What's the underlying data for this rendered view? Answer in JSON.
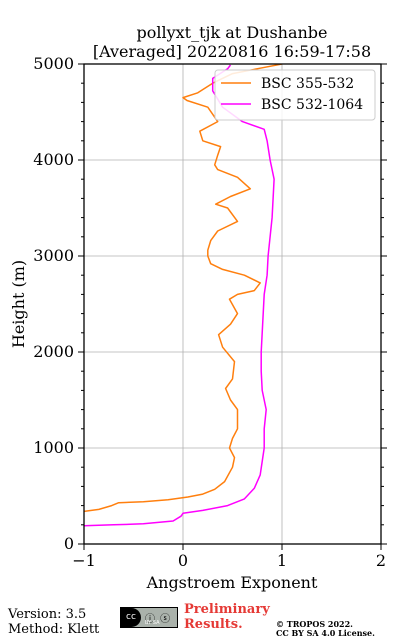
{
  "title_line1": "pollyxt_tjk at Dushanbe",
  "title_line2": "[Averaged] 20220816 16:59-17:58",
  "footer": {
    "version": "Version: 3.5",
    "method": "Method: Klett",
    "cc_label": "cc",
    "cc_icons": "ⓘ ⓢ",
    "cc_sub": "BY  SA",
    "prelim_line1": "Preliminary",
    "prelim_line2": "Results.",
    "copyright_line1": "© TROPOS 2022.",
    "copyright_line2": "CC BY SA 4.0 License."
  },
  "chart_data": {
    "type": "line",
    "xlabel": "Angstroem Exponent",
    "ylabel": "Height (m)",
    "xlim": [
      -1,
      2
    ],
    "ylim": [
      0,
      5000
    ],
    "xticks": [
      -1,
      0,
      1,
      2
    ],
    "yticks": [
      0,
      1000,
      2000,
      3000,
      4000,
      5000
    ],
    "grid": true,
    "legend_position": "top-right",
    "series": [
      {
        "name": "BSC 355-532",
        "color": "#ff7f0e",
        "points": [
          [
            -1.0,
            340
          ],
          [
            -0.85,
            360
          ],
          [
            -0.72,
            400
          ],
          [
            -0.65,
            430
          ],
          [
            -0.4,
            440
          ],
          [
            -0.15,
            460
          ],
          [
            0.05,
            490
          ],
          [
            0.2,
            520
          ],
          [
            0.32,
            570
          ],
          [
            0.42,
            650
          ],
          [
            0.5,
            800
          ],
          [
            0.52,
            900
          ],
          [
            0.47,
            1000
          ],
          [
            0.5,
            1100
          ],
          [
            0.55,
            1200
          ],
          [
            0.55,
            1400
          ],
          [
            0.48,
            1500
          ],
          [
            0.43,
            1620
          ],
          [
            0.5,
            1720
          ],
          [
            0.52,
            1900
          ],
          [
            0.4,
            2050
          ],
          [
            0.36,
            2180
          ],
          [
            0.48,
            2290
          ],
          [
            0.55,
            2400
          ],
          [
            0.47,
            2550
          ],
          [
            0.55,
            2600
          ],
          [
            0.72,
            2640
          ],
          [
            0.78,
            2720
          ],
          [
            0.62,
            2800
          ],
          [
            0.4,
            2860
          ],
          [
            0.28,
            2920
          ],
          [
            0.25,
            3000
          ],
          [
            0.25,
            3060
          ],
          [
            0.28,
            3160
          ],
          [
            0.35,
            3260
          ],
          [
            0.55,
            3360
          ],
          [
            0.45,
            3500
          ],
          [
            0.33,
            3540
          ],
          [
            0.48,
            3620
          ],
          [
            0.68,
            3700
          ],
          [
            0.55,
            3820
          ],
          [
            0.35,
            3900
          ],
          [
            0.32,
            3950
          ],
          [
            0.35,
            4050
          ],
          [
            0.38,
            4140
          ],
          [
            0.2,
            4200
          ],
          [
            0.17,
            4300
          ],
          [
            0.35,
            4400
          ],
          [
            0.25,
            4550
          ],
          [
            0.04,
            4620
          ],
          [
            0.0,
            4650
          ],
          [
            0.15,
            4700
          ],
          [
            0.3,
            4800
          ],
          [
            0.5,
            4900
          ],
          [
            0.8,
            4960
          ],
          [
            1.0,
            5000
          ]
        ]
      },
      {
        "name": "BSC 532-1064",
        "color": "#ff00ff",
        "points": [
          [
            -1.0,
            190
          ],
          [
            -0.7,
            200
          ],
          [
            -0.4,
            210
          ],
          [
            -0.1,
            240
          ],
          [
            -0.02,
            290
          ],
          [
            0.0,
            320
          ],
          [
            0.2,
            350
          ],
          [
            0.45,
            400
          ],
          [
            0.62,
            470
          ],
          [
            0.72,
            580
          ],
          [
            0.78,
            720
          ],
          [
            0.82,
            1000
          ],
          [
            0.82,
            1200
          ],
          [
            0.84,
            1400
          ],
          [
            0.8,
            1600
          ],
          [
            0.79,
            1800
          ],
          [
            0.79,
            2000
          ],
          [
            0.8,
            2200
          ],
          [
            0.81,
            2400
          ],
          [
            0.82,
            2600
          ],
          [
            0.85,
            2800
          ],
          [
            0.86,
            3000
          ],
          [
            0.88,
            3200
          ],
          [
            0.9,
            3400
          ],
          [
            0.91,
            3600
          ],
          [
            0.92,
            3800
          ],
          [
            0.88,
            4000
          ],
          [
            0.85,
            4200
          ],
          [
            0.82,
            4320
          ],
          [
            0.6,
            4400
          ],
          [
            0.4,
            4550
          ],
          [
            0.3,
            4720
          ],
          [
            0.3,
            4850
          ],
          [
            0.45,
            4950
          ],
          [
            0.48,
            4990
          ]
        ]
      }
    ]
  }
}
